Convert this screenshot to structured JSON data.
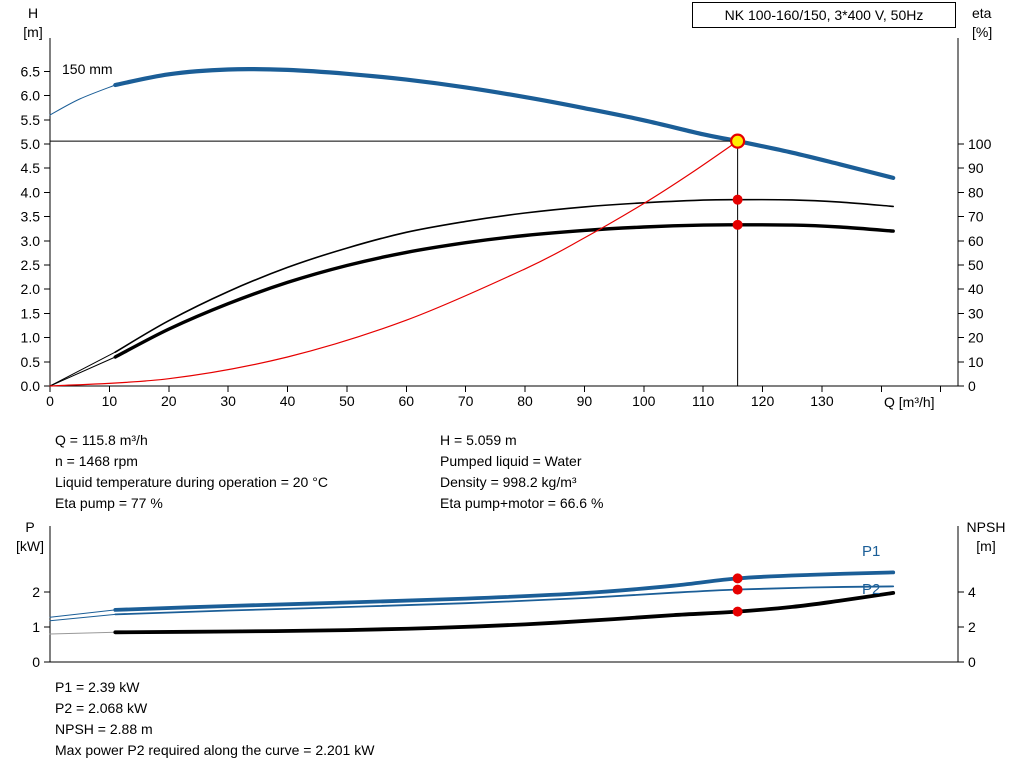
{
  "colors": {
    "blue": "#1b5e97",
    "red": "#e60000",
    "black": "#000000",
    "yellow": "#ffee00",
    "grey": "#999999"
  },
  "chart_data": [
    {
      "type": "line",
      "title": "NK 100-160/150, 3*400 V, 50Hz",
      "curve_label": "150 mm",
      "x_label": "Q [m³/h]",
      "xlim": [
        0,
        152.8
      ],
      "x_ticks": [
        "0",
        "10",
        "20",
        "30",
        "40",
        "50",
        "60",
        "70",
        "80",
        "90",
        "100",
        "110",
        "120",
        "130"
      ],
      "x_extra_ticks": [
        "140",
        "150"
      ],
      "y_left": {
        "axis": "H",
        "lines": [
          "H",
          "[m]"
        ],
        "lim": [
          0,
          7.15
        ],
        "ticks": [
          "0.0",
          "0.5",
          "1.0",
          "1.5",
          "2.0",
          "2.5",
          "3.0",
          "3.5",
          "4.0",
          "4.5",
          "5.0",
          "5.5",
          "6.0",
          "6.5"
        ]
      },
      "y_right": {
        "axis": "eta",
        "lines": [
          "eta",
          "[%]"
        ],
        "lim": [
          0,
          143
        ],
        "ticks": [
          "0",
          "10",
          "20",
          "30",
          "40",
          "50",
          "60",
          "70",
          "80",
          "90",
          "100"
        ]
      },
      "series": [
        {
          "name": "qh-curve-extension",
          "axis": "H",
          "color": "#1b5e97",
          "width": 1,
          "points": [
            [
              0,
              5.6
            ],
            [
              5,
              5.93
            ],
            [
              11,
              6.22
            ]
          ]
        },
        {
          "name": "qh-curve-150mm",
          "axis": "H",
          "color": "#1b5e97",
          "width": 4.2,
          "points": [
            [
              11,
              6.22
            ],
            [
              20,
              6.44
            ],
            [
              30,
              6.54
            ],
            [
              40,
              6.53
            ],
            [
              50,
              6.45
            ],
            [
              60,
              6.33
            ],
            [
              70,
              6.17
            ],
            [
              80,
              5.97
            ],
            [
              90,
              5.74
            ],
            [
              100,
              5.49
            ],
            [
              110,
              5.2
            ],
            [
              115.8,
              5.06
            ],
            [
              125,
              4.82
            ],
            [
              133,
              4.58
            ],
            [
              142,
              4.3
            ]
          ]
        },
        {
          "name": "eta-pump-extension",
          "axis": "eta",
          "color": "#000000",
          "width": 1,
          "points": [
            [
              0,
              0
            ],
            [
              11,
              14
            ]
          ]
        },
        {
          "name": "eta-pump-curve",
          "axis": "eta",
          "color": "#000000",
          "width": 1.6,
          "points": [
            [
              11,
              14
            ],
            [
              20,
              27
            ],
            [
              30,
              39
            ],
            [
              40,
              49
            ],
            [
              50,
              57
            ],
            [
              60,
              63.5
            ],
            [
              70,
              68
            ],
            [
              80,
              71.5
            ],
            [
              90,
              74
            ],
            [
              100,
              75.7
            ],
            [
              110,
              76.8
            ],
            [
              115.8,
              77
            ],
            [
              125,
              76.9
            ],
            [
              133,
              76
            ],
            [
              142,
              74.2
            ]
          ]
        },
        {
          "name": "eta-pump-motor-extension",
          "axis": "eta",
          "color": "#000000",
          "width": 1,
          "points": [
            [
              0,
              0
            ],
            [
              11,
              12
            ]
          ]
        },
        {
          "name": "eta-pump-motor-curve",
          "axis": "eta",
          "color": "#000000",
          "width": 3.4,
          "points": [
            [
              11,
              12
            ],
            [
              20,
              23.5
            ],
            [
              30,
              34
            ],
            [
              40,
              42.8
            ],
            [
              50,
              49.8
            ],
            [
              60,
              55.2
            ],
            [
              70,
              59.2
            ],
            [
              80,
              62.2
            ],
            [
              90,
              64.3
            ],
            [
              100,
              65.7
            ],
            [
              110,
              66.5
            ],
            [
              115.8,
              66.6
            ],
            [
              125,
              66.5
            ],
            [
              133,
              65.7
            ],
            [
              142,
              64
            ]
          ]
        },
        {
          "name": "system-curve",
          "axis": "H",
          "color": "#e60000",
          "width": 1.2,
          "points": [
            [
              0,
              0
            ],
            [
              20,
              0.15
            ],
            [
              40,
              0.6
            ],
            [
              60,
              1.36
            ],
            [
              80,
              2.42
            ],
            [
              90,
              3.06
            ],
            [
              100,
              3.77
            ],
            [
              108,
              4.4
            ],
            [
              115.8,
              5.06
            ]
          ]
        }
      ],
      "crosshair": {
        "q": 115.8,
        "h": 5.059
      },
      "markers": [
        {
          "type": "duty",
          "axis": "H",
          "q": 115.8,
          "v": 5.059,
          "name": "duty-point"
        },
        {
          "type": "dot",
          "axis": "eta",
          "q": 115.8,
          "v": 77,
          "name": "eta-pump-point"
        },
        {
          "type": "dot",
          "axis": "eta",
          "q": 115.8,
          "v": 66.6,
          "name": "eta-pump-motor-point"
        }
      ]
    },
    {
      "type": "line",
      "y_left": {
        "axis": "P",
        "lines": [
          "P",
          "[kW]"
        ],
        "lim": [
          0,
          3.85
        ],
        "ticks": [
          "0",
          "1",
          "2"
        ]
      },
      "y_right": {
        "axis": "NPSH",
        "lines": [
          "NPSH",
          "[m]"
        ],
        "lim": [
          0,
          7.7
        ],
        "ticks": [
          "0",
          "2",
          "4"
        ]
      },
      "series": [
        {
          "name": "p1-extension",
          "axis": "P",
          "color": "#1b5e97",
          "width": 1,
          "points": [
            [
              0,
              1.28
            ],
            [
              11,
              1.49
            ]
          ]
        },
        {
          "name": "p1-curve",
          "axis": "P",
          "color": "#1b5e97",
          "width": 3.8,
          "points": [
            [
              11,
              1.49
            ],
            [
              30,
              1.6
            ],
            [
              50,
              1.7
            ],
            [
              70,
              1.81
            ],
            [
              90,
              1.97
            ],
            [
              105,
              2.18
            ],
            [
              115.8,
              2.39
            ],
            [
              128,
              2.49
            ],
            [
              142,
              2.56
            ]
          ]
        },
        {
          "name": "p2-extension",
          "axis": "P",
          "color": "#1b5e97",
          "width": 1,
          "points": [
            [
              0,
              1.18
            ],
            [
              11,
              1.36
            ]
          ]
        },
        {
          "name": "p2-curve",
          "axis": "P",
          "color": "#1b5e97",
          "width": 1.8,
          "points": [
            [
              11,
              1.36
            ],
            [
              30,
              1.47
            ],
            [
              50,
              1.57
            ],
            [
              70,
              1.68
            ],
            [
              90,
              1.83
            ],
            [
              105,
              1.98
            ],
            [
              115.8,
              2.07
            ],
            [
              128,
              2.13
            ],
            [
              142,
              2.16
            ]
          ]
        },
        {
          "name": "npsh-extension",
          "axis": "NPSH",
          "color": "#999999",
          "width": 1,
          "points": [
            [
              0,
              1.6
            ],
            [
              11,
              1.7
            ]
          ]
        },
        {
          "name": "npsh-curve",
          "axis": "NPSH",
          "color": "#000000",
          "width": 3.8,
          "points": [
            [
              11,
              1.7
            ],
            [
              30,
              1.74
            ],
            [
              50,
              1.82
            ],
            [
              65,
              1.95
            ],
            [
              80,
              2.15
            ],
            [
              95,
              2.45
            ],
            [
              105,
              2.68
            ],
            [
              115.8,
              2.88
            ],
            [
              125,
              3.15
            ],
            [
              133,
              3.5
            ],
            [
              142,
              3.95
            ]
          ]
        }
      ],
      "markers": [
        {
          "type": "dot",
          "axis": "P",
          "q": 115.8,
          "v": 2.39,
          "name": "p1-point"
        },
        {
          "type": "dot",
          "axis": "P",
          "q": 115.8,
          "v": 2.068,
          "name": "p2-point"
        },
        {
          "type": "dot",
          "axis": "NPSH",
          "q": 115.8,
          "v": 2.88,
          "name": "npsh-point"
        }
      ],
      "series_labels": [
        {
          "text": "P1"
        },
        {
          "text": "P2"
        }
      ]
    }
  ],
  "duty_text": {
    "col1": [
      "Q = 115.8 m³/h",
      "n = 1468 rpm",
      "Liquid temperature during operation = 20 °C",
      "Eta pump = 77 %"
    ],
    "col2": [
      "H = 5.059 m",
      "Pumped liquid = Water",
      "Density = 998.2 kg/m³",
      "Eta pump+motor = 66.6 %"
    ]
  },
  "result_text": [
    "P1 = 2.39 kW",
    "P2 = 2.068 kW",
    "NPSH = 2.88 m",
    "Max power P2 required along the curve = 2.201 kW"
  ]
}
